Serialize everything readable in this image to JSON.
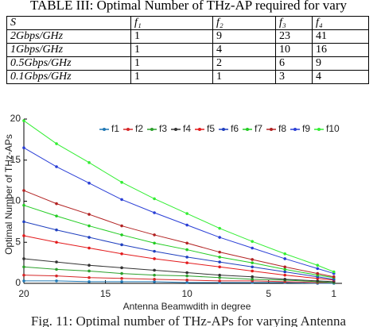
{
  "table": {
    "caption": "TABLE III: Optimal Number of THz-AP required for vary",
    "header": [
      "S",
      "f₁",
      "f₂",
      "f₃",
      "f₄"
    ],
    "rows": [
      [
        "2Gbps/GHz",
        "1",
        "9",
        "23",
        "41"
      ],
      [
        "1Gbps/GHz",
        "1",
        "4",
        "10",
        "16"
      ],
      [
        "0.5Gbps/GHz",
        "1",
        "2",
        "6",
        "9"
      ],
      [
        "0.1Gbps/GHz",
        "1",
        "1",
        "3",
        "4"
      ]
    ]
  },
  "chart_data": {
    "type": "line",
    "xlabel": "Antenna Beamwdith in degree",
    "ylabel": "Optimal Number of THz-APs",
    "caption": "Fig. 11: Optimal number of THz-APs for varying Antenna",
    "x": [
      20,
      18,
      16,
      14,
      12,
      10,
      8,
      6,
      4,
      2,
      1
    ],
    "xlim": [
      20,
      0.5
    ],
    "xticks": [
      20,
      15,
      10,
      5,
      1
    ],
    "ylim": [
      0,
      20
    ],
    "yticks": [
      0,
      5,
      10,
      15,
      20
    ],
    "legend": "top",
    "series": [
      {
        "name": "f1",
        "color": "#1f77b4",
        "values": [
          0.3,
          0.3,
          0.2,
          0.2,
          0.2,
          0.1,
          0.1,
          0.1,
          0.1,
          0.0,
          0.0
        ]
      },
      {
        "name": "f2",
        "color": "#d62728",
        "values": [
          1.0,
          0.9,
          0.7,
          0.6,
          0.5,
          0.4,
          0.3,
          0.3,
          0.2,
          0.1,
          0.1
        ]
      },
      {
        "name": "f3",
        "color": "#2ca02c",
        "values": [
          2.0,
          1.7,
          1.5,
          1.2,
          1.0,
          0.9,
          0.7,
          0.5,
          0.4,
          0.2,
          0.1
        ]
      },
      {
        "name": "f4",
        "color": "#333333",
        "values": [
          3.0,
          2.6,
          2.2,
          1.9,
          1.6,
          1.3,
          1.0,
          0.8,
          0.5,
          0.3,
          0.2
        ]
      },
      {
        "name": "f5",
        "color": "#e31a1c",
        "values": [
          5.8,
          5.0,
          4.3,
          3.6,
          3.0,
          2.5,
          2.0,
          1.5,
          1.0,
          0.6,
          0.4
        ]
      },
      {
        "name": "f6",
        "color": "#1f3fbf",
        "values": [
          7.5,
          6.5,
          5.6,
          4.7,
          3.9,
          3.2,
          2.6,
          2.0,
          1.4,
          0.8,
          0.5
        ]
      },
      {
        "name": "f7",
        "color": "#22cc22",
        "values": [
          9.5,
          8.2,
          7.0,
          5.9,
          4.9,
          4.1,
          3.2,
          2.5,
          1.7,
          1.0,
          0.7
        ]
      },
      {
        "name": "f8",
        "color": "#b22222",
        "values": [
          11.3,
          9.7,
          8.4,
          7.0,
          5.9,
          4.9,
          3.8,
          2.9,
          2.0,
          1.2,
          0.8
        ]
      },
      {
        "name": "f9",
        "color": "#2a3fd6",
        "values": [
          16.5,
          14.2,
          12.2,
          10.2,
          8.6,
          7.1,
          5.6,
          4.3,
          3.0,
          1.8,
          1.2
        ]
      },
      {
        "name": "f10",
        "color": "#33ee33",
        "values": [
          19.8,
          17.0,
          14.7,
          12.3,
          10.3,
          8.5,
          6.7,
          5.1,
          3.6,
          2.2,
          1.4
        ]
      }
    ]
  }
}
